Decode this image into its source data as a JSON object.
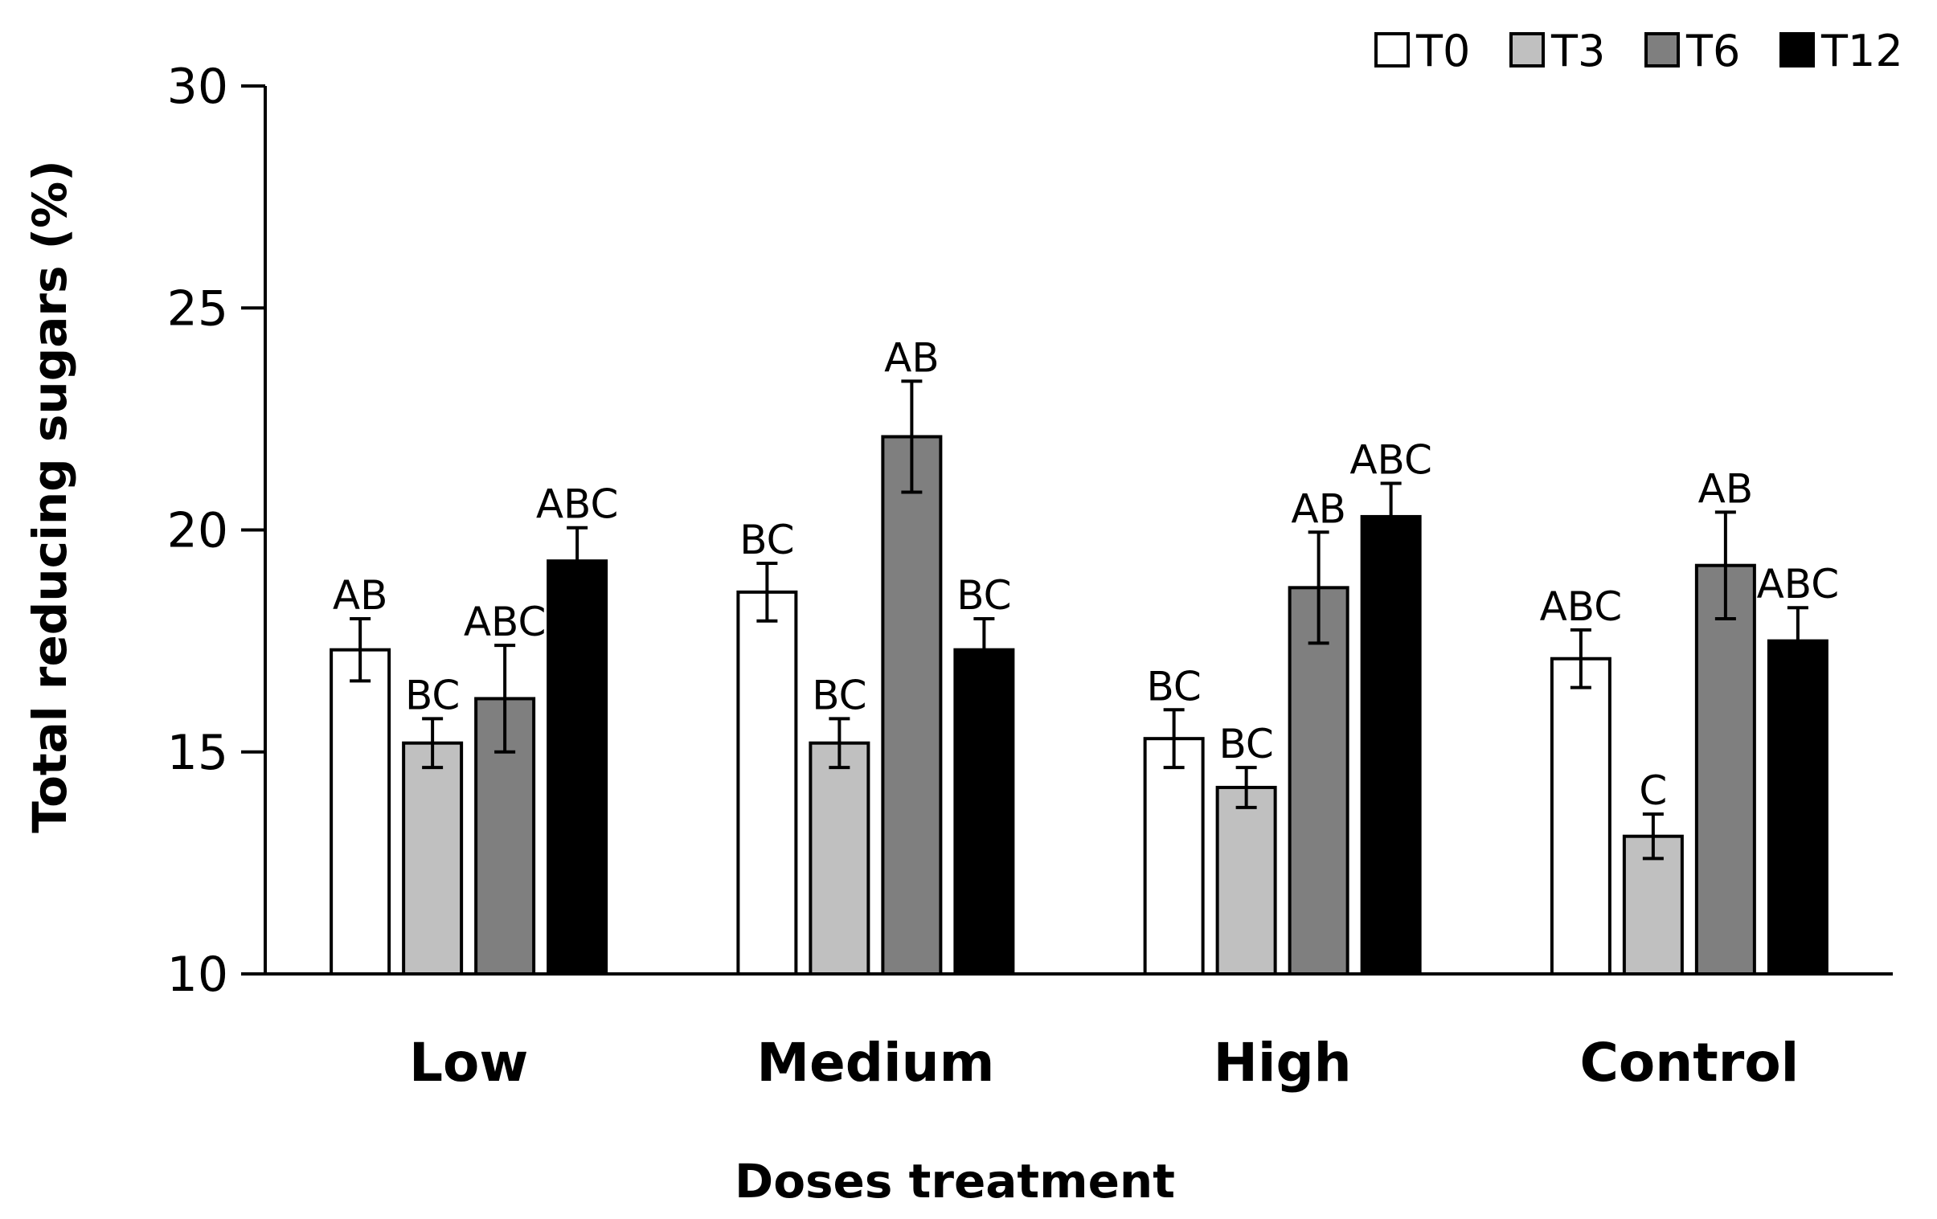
{
  "chart_data": {
    "type": "bar",
    "title": "",
    "xlabel": "Doses treatment",
    "ylabel": "Total reducing sugars (%)",
    "ylim": [
      10,
      30
    ],
    "yticks": [
      10,
      15,
      20,
      25,
      30
    ],
    "legend_position": "top-right",
    "categories": [
      "Low",
      "Medium",
      "High",
      "Control"
    ],
    "series": [
      {
        "name": "T0",
        "color": "#ffffff",
        "values": [
          17.3,
          18.6,
          15.3,
          17.1
        ],
        "errors": [
          0.7,
          0.65,
          0.65,
          0.65
        ],
        "labels": [
          "AB",
          "BC",
          "BC",
          "ABC"
        ]
      },
      {
        "name": "T3",
        "color": "#c0c0c0",
        "values": [
          15.2,
          15.2,
          14.2,
          13.1
        ],
        "errors": [
          0.55,
          0.55,
          0.45,
          0.5
        ],
        "labels": [
          "BC",
          "BC",
          "BC",
          "C"
        ]
      },
      {
        "name": "T6",
        "color": "#7f7f7f",
        "values": [
          16.2,
          22.1,
          18.7,
          19.2
        ],
        "errors": [
          1.2,
          1.25,
          1.25,
          1.2
        ],
        "labels": [
          "ABC",
          "AB",
          "AB",
          "AB"
        ]
      },
      {
        "name": "T12",
        "color": "#000000",
        "values": [
          19.3,
          17.3,
          20.3,
          17.5
        ],
        "errors": [
          0.75,
          0.7,
          0.75,
          0.75
        ],
        "labels": [
          "ABC",
          "BC",
          "ABC",
          "ABC"
        ]
      }
    ]
  }
}
